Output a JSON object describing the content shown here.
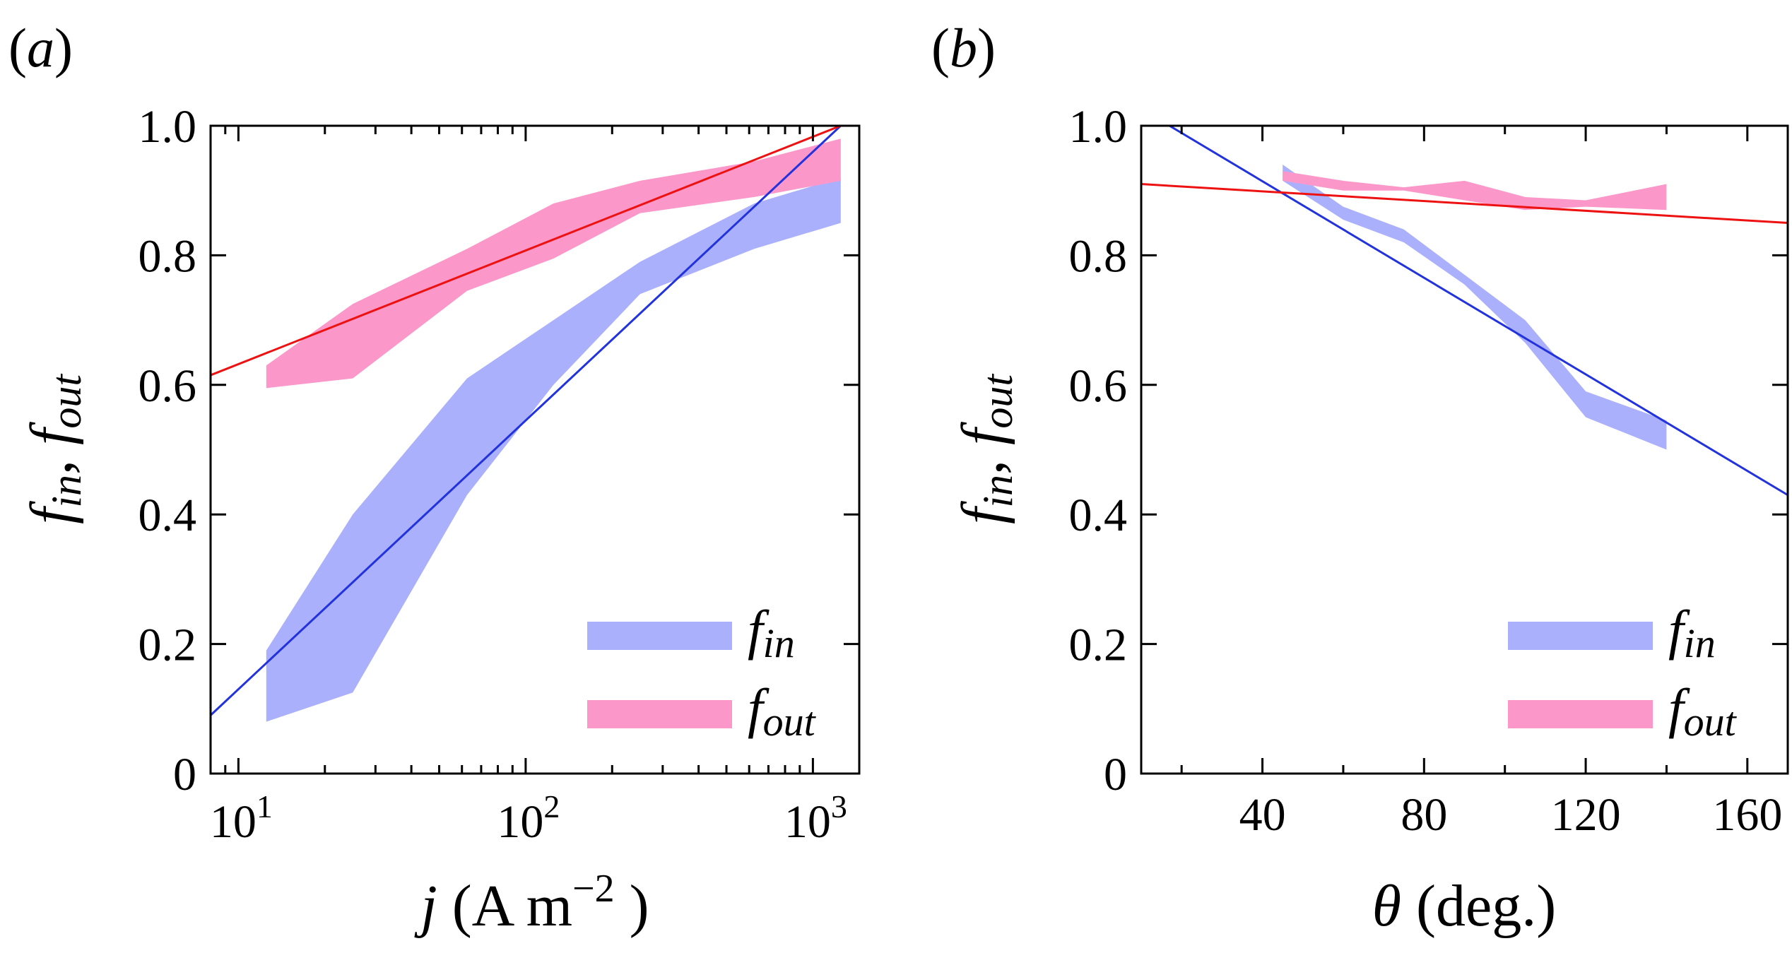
{
  "colors": {
    "f_in_band": "#aab0fc",
    "f_out_band": "#fc98c9",
    "f_in_fit": "#2233dd",
    "f_out_fit": "#ee1111"
  },
  "chart_data": [
    {
      "type": "area",
      "panel_label": "a",
      "xscale": "log",
      "xlim": [
        8,
        1450
      ],
      "ylim": [
        0,
        1.0
      ],
      "xticks": [
        {
          "value": 10,
          "base": "10",
          "exp": "1"
        },
        {
          "value": 100,
          "base": "10",
          "exp": "2"
        },
        {
          "value": 1000,
          "base": "10",
          "exp": "3"
        }
      ],
      "yticks": [
        {
          "value": 0,
          "label": "0"
        },
        {
          "value": 0.2,
          "label": "0.2"
        },
        {
          "value": 0.4,
          "label": "0.4"
        },
        {
          "value": 0.6,
          "label": "0.6"
        },
        {
          "value": 0.8,
          "label": "0.8"
        },
        {
          "value": 1.0,
          "label": "1.0"
        }
      ],
      "xlabel": {
        "var": "j",
        "unit": " (A m",
        "exp": "−2",
        "close": " )"
      },
      "ylabel": {
        "a": "f",
        "a_sub": "in",
        "sep": ", ",
        "b": "f",
        "b_sub": "out"
      },
      "legend": {
        "position": "bottom-right",
        "entries": [
          {
            "main": "f",
            "sub": "in",
            "series": "f_in"
          },
          {
            "main": "f",
            "sub": "out",
            "series": "f_out"
          }
        ]
      },
      "series": [
        {
          "key": "f_in",
          "x": [
            12.5,
            25,
            62.5,
            125,
            250,
            625,
            1250
          ],
          "lower": [
            0.08,
            0.125,
            0.43,
            0.6,
            0.74,
            0.81,
            0.85
          ],
          "upper": [
            0.19,
            0.4,
            0.61,
            0.7,
            0.79,
            0.88,
            0.92
          ]
        },
        {
          "key": "f_out",
          "x": [
            12.5,
            25,
            62.5,
            125,
            250,
            625,
            1250
          ],
          "lower": [
            0.595,
            0.61,
            0.745,
            0.795,
            0.865,
            0.89,
            0.915
          ],
          "upper": [
            0.63,
            0.725,
            0.81,
            0.88,
            0.915,
            0.945,
            0.98
          ]
        }
      ],
      "fits": [
        {
          "key": "f_in",
          "x": [
            8,
            1250
          ],
          "y": [
            0.09,
            1.0
          ]
        },
        {
          "key": "f_out",
          "x": [
            8,
            1250
          ],
          "y": [
            0.615,
            1.0
          ]
        }
      ]
    },
    {
      "type": "area",
      "panel_label": "b",
      "xscale": "linear",
      "xlim": [
        10,
        170
      ],
      "ylim": [
        0,
        1.0
      ],
      "xticks": [
        {
          "value": 40,
          "label": "40"
        },
        {
          "value": 80,
          "label": "80"
        },
        {
          "value": 120,
          "label": "120"
        },
        {
          "value": 160,
          "label": "160"
        }
      ],
      "yticks": [
        {
          "value": 0,
          "label": "0"
        },
        {
          "value": 0.2,
          "label": "0.2"
        },
        {
          "value": 0.4,
          "label": "0.4"
        },
        {
          "value": 0.6,
          "label": "0.6"
        },
        {
          "value": 0.8,
          "label": "0.8"
        },
        {
          "value": 1.0,
          "label": "1.0"
        }
      ],
      "xlabel": {
        "var": "θ",
        "unit": " (deg.)"
      },
      "ylabel": {
        "a": "f",
        "a_sub": "in",
        "sep": ", ",
        "b": "f",
        "b_sub": "out"
      },
      "legend": {
        "position": "bottom-right",
        "entries": [
          {
            "main": "f",
            "sub": "in",
            "series": "f_in"
          },
          {
            "main": "f",
            "sub": "out",
            "series": "f_out"
          }
        ]
      },
      "series": [
        {
          "key": "f_in",
          "x": [
            45,
            60,
            75,
            90,
            105,
            120,
            140
          ],
          "lower": [
            0.915,
            0.855,
            0.82,
            0.755,
            0.665,
            0.55,
            0.5
          ],
          "upper": [
            0.94,
            0.875,
            0.84,
            0.77,
            0.7,
            0.59,
            0.545
          ]
        },
        {
          "key": "f_out",
          "x": [
            45,
            60,
            75,
            90,
            105,
            120,
            140
          ],
          "lower": [
            0.915,
            0.9,
            0.9,
            0.885,
            0.87,
            0.875,
            0.87
          ],
          "upper": [
            0.93,
            0.915,
            0.905,
            0.915,
            0.89,
            0.885,
            0.91
          ]
        }
      ],
      "fits": [
        {
          "key": "f_in",
          "x": [
            17,
            170
          ],
          "y": [
            1.0,
            0.43
          ]
        },
        {
          "key": "f_out",
          "x": [
            10,
            170
          ],
          "y": [
            0.91,
            0.85
          ]
        }
      ]
    }
  ]
}
